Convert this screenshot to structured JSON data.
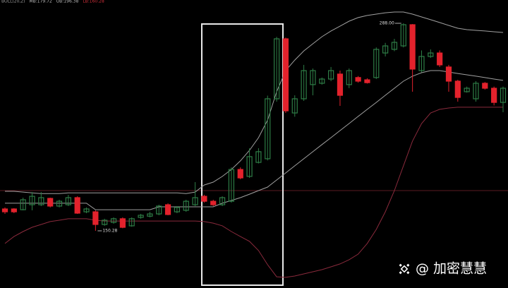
{
  "chart_data": {
    "type": "candlestick",
    "header": [
      "BOLL(20,2)",
      "MB:179.72",
      "UB:196.38",
      "LB:160.28"
    ],
    "header_colors": [
      "#9a9a9a",
      "#bbbbbb",
      "#bbbbbb",
      "#d0303a"
    ],
    "open": [
      164.8,
      164.8,
      164.3,
      167.6,
      167.6,
      171.8,
      166.7,
      167.6,
      172.3,
      162.9,
      162.9,
      154.5,
      155.9,
      158.3,
      153.6,
      159.2,
      160.0,
      161.5,
      167.6,
      162.9,
      163.9,
      167.6,
      173.2,
      169.9,
      167.6,
      169.9,
      191.0,
      186.4,
      195.7,
      198.1,
      237.9,
      277.7,
      228.5,
      237.9,
      247.3,
      248.2,
      251.0,
      254.3,
      247.3,
      252.0,
      250.5,
      252.0,
      268.3,
      270.7,
      273.0,
      287.07,
      256.6,
      266.0,
      268.3,
      259.0,
      249.6,
      242.6,
      237.9,
      248.2,
      244.9,
      235.5
    ],
    "high": [
      165.8,
      165.3,
      172.3,
      176.0,
      176.0,
      172.3,
      170.9,
      174.2,
      173.2,
      165.8,
      163.9,
      158.3,
      159.2,
      159.2,
      159.2,
      161.5,
      162.9,
      167.6,
      168.5,
      166.7,
      170.9,
      182.6,
      174.2,
      170.9,
      173.2,
      192.4,
      192.4,
      205.1,
      205.1,
      240.0,
      279.0,
      278.5,
      240.2,
      260.4,
      258.0,
      252.0,
      259.0,
      256.6,
      258.0,
      253.0,
      251.5,
      272.0,
      275.0,
      277.7,
      288.0,
      287.5,
      270.0,
      270.7,
      270.0,
      260.4,
      250.5,
      246.0,
      249.6,
      249.0,
      246.0,
      246.0
    ],
    "low": [
      161.5,
      162.0,
      163.9,
      163.9,
      166.7,
      165.8,
      165.8,
      166.7,
      161.5,
      162.0,
      150.28,
      153.6,
      155.0,
      152.0,
      153.0,
      158.3,
      159.2,
      160.6,
      160.6,
      162.0,
      162.9,
      166.7,
      169.0,
      166.7,
      166.7,
      169.0,
      184.5,
      185.4,
      195.0,
      197.0,
      236.0,
      228.5,
      226.0,
      236.5,
      240.2,
      247.3,
      249.6,
      233.2,
      245.0,
      248.6,
      248.0,
      251.0,
      266.0,
      269.5,
      272.0,
      242.6,
      255.5,
      265.0,
      259.0,
      242.6,
      236.0,
      242.0,
      236.0,
      244.0,
      233.5,
      229.0
    ],
    "close": [
      162.9,
      162.9,
      170.9,
      173.2,
      172.3,
      166.7,
      169.9,
      172.3,
      162.0,
      164.8,
      154.5,
      157.3,
      158.3,
      152.6,
      158.3,
      160.6,
      161.5,
      166.7,
      161.1,
      165.8,
      169.9,
      172.3,
      169.9,
      167.6,
      172.3,
      191.0,
      185.4,
      199.5,
      202.8,
      237.9,
      277.7,
      229.9,
      237.9,
      256.6,
      256.6,
      251.0,
      256.6,
      240.2,
      256.6,
      249.6,
      248.6,
      270.7,
      273.0,
      275.36,
      287.07,
      257.6,
      266.0,
      268.3,
      260.4,
      249.6,
      238.8,
      244.9,
      248.2,
      244.9,
      235.5,
      244.9
    ],
    "up_color": "#2e7d46",
    "down_color": "#e3222c",
    "bands": [
      {
        "color": "#a0a0a0",
        "values": [
          176.5,
          176.5,
          176.0,
          175.5,
          175.0,
          175.0,
          175.0,
          175.5,
          175.5,
          175.5,
          175.5,
          175.5,
          175.5,
          175.5,
          175.5,
          175.5,
          175.5,
          175.5,
          175.5,
          175.5,
          175.0,
          176.0,
          180.7,
          182.6,
          186.4,
          191.0,
          196.7,
          203.7,
          212.1,
          223.8,
          242.6,
          256.6,
          263.6,
          269.7,
          274.4,
          279.1,
          282.9,
          286.1,
          289.4,
          291.8,
          293.2,
          294.1,
          295.0,
          295.5,
          295.5,
          294.1,
          292.2,
          290.4,
          288.5,
          286.6,
          284.7,
          283.8,
          283.3,
          282.9,
          282.4,
          281.9
        ]
      },
      {
        "color": "#a0a0a0",
        "values": [
          168.6,
          168.6,
          168.6,
          168.6,
          168.6,
          168.6,
          168.6,
          168.6,
          168.6,
          168.6,
          164.3,
          164.3,
          164.3,
          164.3,
          164.3,
          164.3,
          164.3,
          166.2,
          166.2,
          166.2,
          166.2,
          166.2,
          166.2,
          166.2,
          168.6,
          170.4,
          172.3,
          174.6,
          177.0,
          179.3,
          184.0,
          188.7,
          193.4,
          198.1,
          202.8,
          207.5,
          212.1,
          216.8,
          221.5,
          226.2,
          230.9,
          235.5,
          240.2,
          244.9,
          249.6,
          252.9,
          255.2,
          256.6,
          256.6,
          255.7,
          254.7,
          253.8,
          252.9,
          252.0,
          251.0,
          250.1
        ]
      },
      {
        "color": "#8a2a3c",
        "values": [
          141.9,
          146.5,
          149.8,
          152.6,
          154.5,
          156.4,
          157.3,
          158.3,
          158.3,
          158.3,
          157.3,
          156.8,
          156.8,
          156.8,
          156.8,
          156.8,
          156.8,
          156.8,
          156.8,
          156.8,
          156.8,
          156.8,
          156.4,
          155.4,
          153.6,
          149.8,
          146.5,
          143.3,
          137.2,
          127.8,
          119.8,
          119.4,
          120.3,
          121.7,
          123.1,
          124.5,
          126.4,
          128.3,
          131.1,
          134.8,
          141.9,
          151.2,
          162.9,
          177.0,
          193.4,
          209.8,
          221.5,
          228.5,
          230.9,
          231.8,
          232.3,
          232.3,
          232.3,
          232.3,
          232.3,
          232.3
        ]
      }
    ],
    "annotations": [
      {
        "value": 288,
        "label": "288.00"
      },
      {
        "value": 150.28,
        "label": "150.28"
      }
    ],
    "watermark": "@ 加密慧慧"
  }
}
